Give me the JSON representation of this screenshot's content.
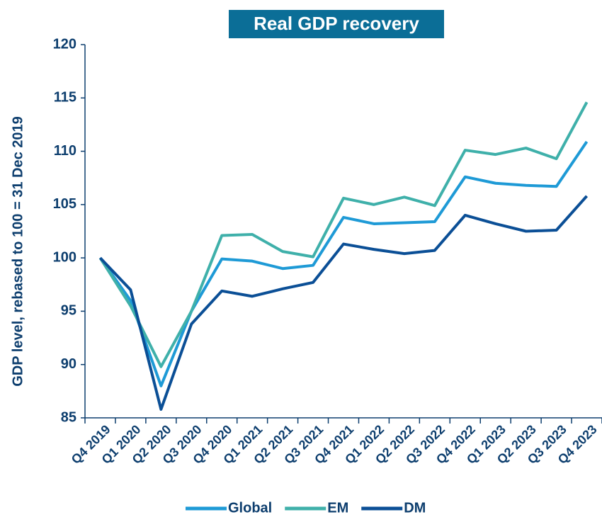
{
  "chart_data": {
    "type": "line",
    "title": "Real GDP recovery",
    "y_label": "GDP level, rebased to 100 = 31 Dec 2019",
    "categories": [
      "Q4 2019",
      "Q1 2020",
      "Q2 2020",
      "Q3 2020",
      "Q4 2020",
      "Q1 2021",
      "Q2 2021",
      "Q3 2021",
      "Q4 2021",
      "Q1 2022",
      "Q2 2022",
      "Q3 2022",
      "Q4 2022",
      "Q1 2023",
      "Q2 2023",
      "Q3 2023",
      "Q4 2023"
    ],
    "series": [
      {
        "name": "Global",
        "color": "#1e9ad6",
        "values": [
          100,
          96,
          88,
          95,
          99.9,
          99.7,
          99.0,
          99.3,
          103.8,
          103.2,
          103.3,
          103.4,
          107.6,
          107.0,
          106.8,
          106.7,
          110.9
        ]
      },
      {
        "name": "EM",
        "color": "#3fb0aa",
        "values": [
          100,
          95.5,
          89.8,
          95,
          102.1,
          102.2,
          100.6,
          100.1,
          105.6,
          105.0,
          105.7,
          104.9,
          110.1,
          109.7,
          110.3,
          109.3,
          114.6
        ]
      },
      {
        "name": "DM",
        "color": "#0b4f96",
        "values": [
          100,
          97,
          85.8,
          93.8,
          96.9,
          96.4,
          97.1,
          97.7,
          101.3,
          100.8,
          100.4,
          100.7,
          104.0,
          103.2,
          102.5,
          102.6,
          105.8
        ]
      }
    ],
    "ylim": [
      85,
      120
    ],
    "yticks": [
      85,
      90,
      95,
      100,
      105,
      110,
      115,
      120
    ]
  }
}
